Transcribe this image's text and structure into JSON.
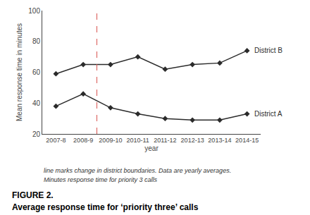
{
  "chart_data": {
    "type": "line",
    "categories": [
      "2007-8",
      "2008-9",
      "2009-10",
      "2010-11",
      "2011-12",
      "2012-13",
      "2013-14",
      "2014-15"
    ],
    "series": [
      {
        "name": "District B",
        "color": "#2b2b2b",
        "marker": "diamond",
        "values": [
          59,
          65,
          65,
          70,
          62,
          65,
          66,
          74
        ]
      },
      {
        "name": "District A",
        "color": "#2b2b2b",
        "marker": "diamond",
        "values": [
          38,
          46,
          37,
          33,
          30,
          29,
          29,
          33
        ]
      }
    ],
    "vline": {
      "x": 1.5,
      "color": "#d9534f",
      "line_style": "dashed"
    },
    "xlabel": "year",
    "ylabel": "Mean response time in minutes",
    "ylim": [
      20,
      100
    ],
    "yticks": [
      20,
      40,
      60,
      80,
      100
    ],
    "grid": false,
    "notes": [
      "line marks change in district boundaries. Data are yearly averages.",
      "Minutes response time for priority 3 calls"
    ],
    "figure_label": "FIGURE 2.",
    "caption": "Average response time for ‘priority three’ calls"
  }
}
